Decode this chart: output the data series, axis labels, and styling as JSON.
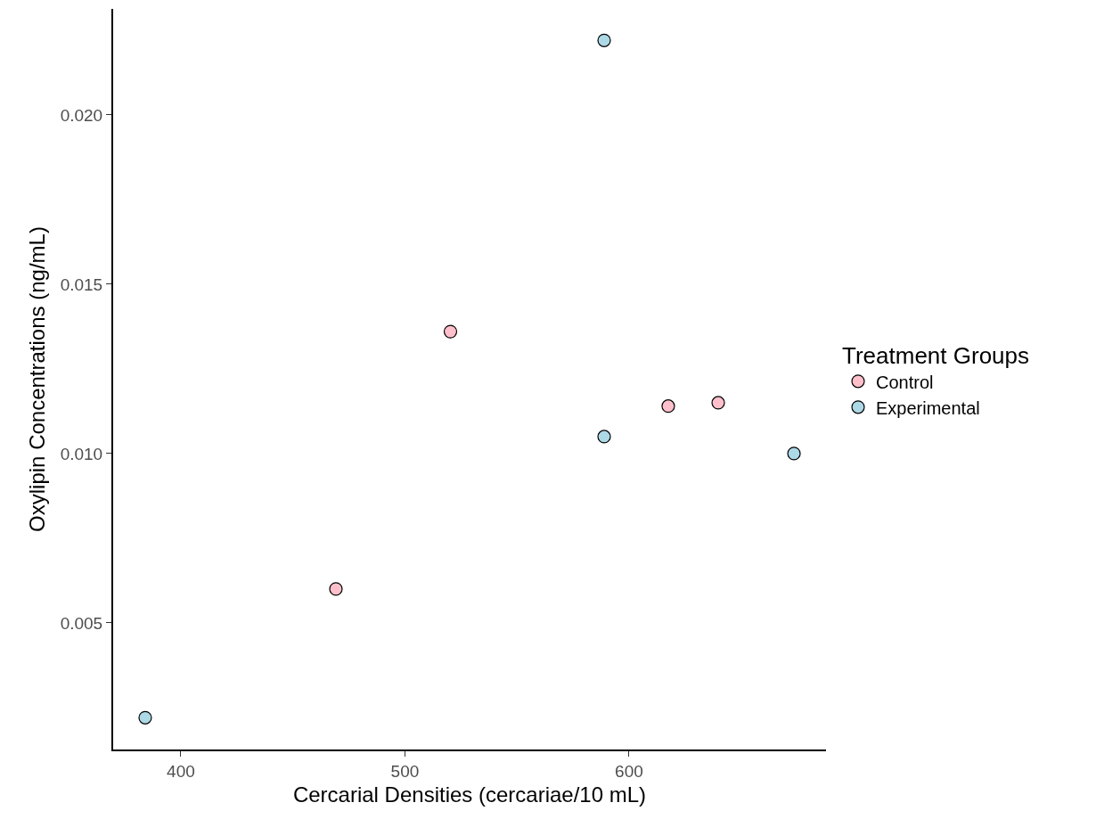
{
  "chart_data": {
    "type": "scatter",
    "xlabel": "Cercarial Densities (cercariae/10 mL)",
    "ylabel": "Oxylipin Concentrations (ng/mL)",
    "legend_title": "Treatment Groups",
    "legend": "right",
    "grid": false,
    "marker": "circle",
    "xlim": [
      369.8,
      687.9
    ],
    "xticks": [
      400,
      500,
      600
    ],
    "ylim": [
      0.00126,
      0.02313
    ],
    "yticks": [
      {
        "value": 0.005,
        "label": "0.005"
      },
      {
        "value": 0.01,
        "label": "0.010"
      },
      {
        "value": 0.015,
        "label": "0.015"
      },
      {
        "value": 0.02,
        "label": "0.020"
      }
    ],
    "series": [
      {
        "name": "Control",
        "color": "#ffc0cb",
        "x": [
          520.3,
          469.2,
          617.5,
          639.8
        ],
        "values": [
          0.0136,
          0.006,
          0.0114,
          0.0115
        ]
      },
      {
        "name": "Experimental",
        "color": "#add8e6",
        "x": [
          588.9,
          588.9,
          673.6,
          384.1
        ],
        "values": [
          0.0222,
          0.0105,
          0.01,
          0.0022
        ]
      }
    ]
  }
}
